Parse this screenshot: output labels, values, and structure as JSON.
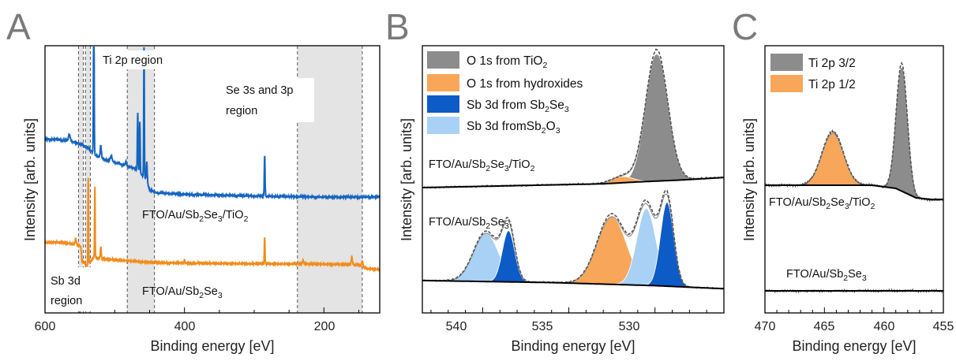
{
  "panels": {
    "A": {
      "letter": "A",
      "xlabel": "Binding energy [eV]",
      "ylabel": "Intensity [arb. units]",
      "ticks": [
        "600",
        "400",
        "200"
      ],
      "annotations": {
        "ti2p": "Ti 2p region",
        "se_line1": "Se 3s and 3p",
        "se_line2": "region",
        "sb_line1": "Sb 3d",
        "sb_line2": "region"
      },
      "curve_labels": {
        "top": [
          "FTO/Au/Sb",
          "2",
          "Se",
          "3",
          "/TiO",
          "2"
        ],
        "bottom": [
          "FTO/Au/Sb",
          "2",
          "Se",
          "3"
        ]
      }
    },
    "B": {
      "letter": "B",
      "xlabel": "Binding energy [eV]",
      "ylabel": "Intensity [arb. units]",
      "ticks": [
        "540",
        "535",
        "530"
      ],
      "legend": [
        [
          "O 1s from TiO",
          "2"
        ],
        [
          "O 1s from hydroxides"
        ],
        [
          "Sb 3d from Sb",
          "2",
          "Se",
          "3"
        ],
        [
          "Sb 3d fromSb",
          "2",
          "O",
          "3"
        ]
      ],
      "curve_labels": {
        "top": [
          "FTO/Au/Sb",
          "2",
          "Se",
          "3",
          "/TiO",
          "2"
        ],
        "bottom": [
          "FTO/Au/Sb",
          "2",
          "Se",
          "3"
        ]
      }
    },
    "C": {
      "letter": "C",
      "xlabel": "Binding energy [eV]",
      "ylabel": "Intensity [arb. units]",
      "ticks": [
        "470",
        "465",
        "460",
        "455"
      ],
      "legend": [
        [
          "Ti 2p 3/2"
        ],
        [
          "Ti 2p 1/2"
        ]
      ],
      "curve_labels": {
        "top": [
          "FTO/Au/Sb",
          "2",
          "Se",
          "3",
          "/TiO",
          "2"
        ],
        "bottom": [
          "FTO/Au/Sb",
          "2",
          "Se",
          "3"
        ]
      }
    }
  },
  "colors": {
    "gray_fill": "#8c8c8c",
    "orange_fill": "#f7a65a",
    "darkblue_fill": "#0d5bc6",
    "lightblue_fill": "#a9d1f5",
    "blue_line": "#1565c0",
    "orange_line": "#f28c1a",
    "region_shade": "#e4e4e4"
  },
  "chart_data": [
    {
      "type": "line",
      "panel": "A",
      "xlabel": "Binding energy [eV]",
      "ylabel": "Intensity [arb. units]",
      "xlim": [
        600,
        120
      ],
      "x_reversed": true,
      "shaded_regions": [
        [
          552,
          545
        ],
        [
          542,
          535
        ],
        [
          482,
          443
        ],
        [
          238,
          145
        ]
      ],
      "series": [
        {
          "name": "FTO/Au/Sb2Se3/TiO2",
          "color": "#1565c0",
          "background": [
            [
              600,
              0.58
            ],
            [
              585,
              0.58
            ],
            [
              570,
              0.57
            ],
            [
              555,
              0.55
            ],
            [
              545,
              0.52
            ],
            [
              538,
              0.5
            ],
            [
              530,
              0.44
            ],
            [
              520,
              0.4
            ],
            [
              500,
              0.36
            ],
            [
              485,
              0.33
            ],
            [
              470,
              0.3
            ],
            [
              455,
              0.2
            ],
            [
              450,
              0.1
            ],
            [
              440,
              0.07
            ],
            [
              400,
              0.055
            ],
            [
              300,
              0.04
            ],
            [
              200,
              0.03
            ],
            [
              120,
              0.03
            ]
          ],
          "peaks": [
            [
              565,
              0.06,
              3
            ],
            [
              530,
              1.5,
              1.2
            ],
            [
              520,
              0.12,
              2
            ],
            [
              505,
              0.05,
              3
            ],
            [
              484,
              0.04,
              2
            ],
            [
              467,
              0.55,
              1.3
            ],
            [
              464,
              0.48,
              1.2
            ],
            [
              458,
              1.25,
              1.1
            ],
            [
              454,
              0.18,
              1.5
            ],
            [
              285,
              0.38,
              1.3
            ]
          ]
        },
        {
          "name": "FTO/Au/Sb2Se3",
          "color": "#f28c1a",
          "background": [
            [
              600,
              0.3
            ],
            [
              575,
              0.3
            ],
            [
              560,
              0.28
            ],
            [
              548,
              0.25
            ],
            [
              545,
              0.05
            ],
            [
              540,
              -0.02
            ],
            [
              530,
              0.1
            ],
            [
              515,
              0.08
            ],
            [
              490,
              0.06
            ],
            [
              460,
              0.04
            ],
            [
              420,
              0.025
            ],
            [
              300,
              0.015
            ],
            [
              200,
              0.01
            ],
            [
              150,
              0.0
            ],
            [
              140,
              -0.05
            ],
            [
              120,
              -0.06
            ]
          ],
          "peaks": [
            [
              556,
              0.08,
              2
            ],
            [
              547,
              -0.14,
              2
            ],
            [
              538,
              1.15,
              1.0
            ],
            [
              528.5,
              0.95,
              1.0
            ],
            [
              520,
              0.15,
              1.5
            ],
            [
              400,
              0.05,
              1.2
            ],
            [
              285,
              0.35,
              1.1
            ],
            [
              230,
              0.05,
              2
            ],
            [
              160,
              0.1,
              2
            ],
            [
              145,
              0.08,
              2
            ]
          ]
        }
      ]
    },
    {
      "type": "area",
      "panel": "B",
      "xlabel": "Binding energy [eV]",
      "ylabel": "Intensity [arb. units]",
      "xlim": [
        543.5,
        526
      ],
      "x_reversed": true,
      "series": [
        {
          "name": "FTO/Au/Sb2Se3/TiO2",
          "background": [
            [
              543.5,
              0.0
            ],
            [
              533,
              0.03
            ],
            [
              531,
              0.045
            ],
            [
              528.5,
              0.06
            ],
            [
              526,
              0.08
            ]
          ],
          "components": [
            {
              "name": "O 1s from TiO2",
              "color": "#8c8c8c",
              "center": 529.9,
              "height": 1.0,
              "fwhm": 1.5
            },
            {
              "name": "O 1s from hydroxides",
              "color": "#f7a65a",
              "center": 531.9,
              "height": 0.05,
              "fwhm": 1.4
            }
          ]
        },
        {
          "name": "FTO/Au/Sb2Se3",
          "background": [
            [
              543.5,
              0.07
            ],
            [
              536,
              0.05
            ],
            [
              530,
              0.02
            ],
            [
              526,
              -0.01
            ]
          ],
          "components": [
            {
              "name": "Sb 3d from Sb2O3",
              "color": "#a9d1f5",
              "center": 539.8,
              "height": 0.47,
              "fwhm": 1.7
            },
            {
              "name": "Sb 3d from Sb2Se3",
              "color": "#0d5bc6",
              "center": 538.5,
              "height": 0.5,
              "fwhm": 0.85
            },
            {
              "name": "O 1s from hydroxides",
              "color": "#f7a65a",
              "center": 532.5,
              "height": 0.66,
              "fwhm": 2.0
            },
            {
              "name": "Sb 3d from Sb2O3",
              "color": "#a9d1f5",
              "center": 530.5,
              "height": 0.75,
              "fwhm": 1.3
            },
            {
              "name": "Sb 3d from Sb2Se3",
              "color": "#0d5bc6",
              "center": 529.3,
              "height": 0.82,
              "fwhm": 0.9
            }
          ]
        }
      ]
    },
    {
      "type": "area",
      "panel": "C",
      "xlabel": "Binding energy [eV]",
      "ylabel": "Intensity [arb. units]",
      "xlim": [
        470,
        455
      ],
      "x_reversed": true,
      "series": [
        {
          "name": "FTO/Au/Sb2Se3/TiO2",
          "background": [
            [
              470,
              0.0
            ],
            [
              461,
              0.0
            ],
            [
              459,
              -0.02
            ],
            [
              457.3,
              -0.08
            ],
            [
              456,
              -0.09
            ],
            [
              455,
              -0.09
            ]
          ],
          "components": [
            {
              "name": "Ti 2p 3/2",
              "color": "#8c8c8c",
              "center": 458.5,
              "height": 0.78,
              "fwhm": 1.1
            },
            {
              "name": "Ti 2p 1/2",
              "color": "#f7a65a",
              "center": 464.3,
              "height": 0.33,
              "fwhm": 2.1
            }
          ]
        },
        {
          "name": "FTO/Au/Sb2Se3",
          "background": [
            [
              470,
              0.0
            ],
            [
              455,
              0.0
            ]
          ],
          "components": []
        }
      ]
    }
  ]
}
